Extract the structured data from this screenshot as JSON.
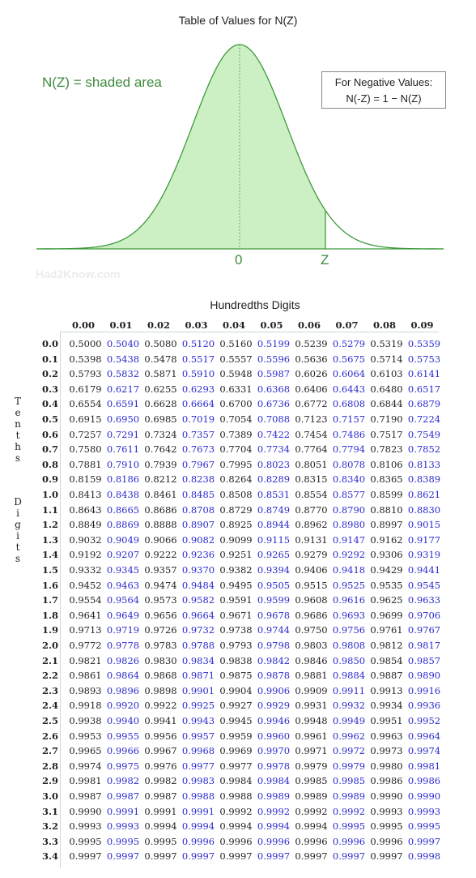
{
  "title": "Table of Values for N(Z)",
  "curve_label": "N(Z) = shaded area",
  "negative_box": {
    "line1": "For Negative Values:",
    "line2": "N(-Z) = 1 − N(Z)"
  },
  "axis_labels": {
    "zero": "0",
    "z": "Z"
  },
  "watermark": "Had2Know.com",
  "column_axis_label": "Hundredths Digits",
  "row_axis_label": {
    "word1": "Tenths",
    "word2": "Digits"
  },
  "colors": {
    "fill": "#ccf0c4",
    "stroke": "#3f9a3f",
    "odd_col": "#2b2bd0",
    "even_col": "#222222"
  },
  "columns": [
    "0.00",
    "0.01",
    "0.02",
    "0.03",
    "0.04",
    "0.05",
    "0.06",
    "0.07",
    "0.08",
    "0.09"
  ],
  "rows": [
    {
      "z": "0.0",
      "v": [
        "0.5000",
        "0.5040",
        "0.5080",
        "0.5120",
        "0.5160",
        "0.5199",
        "0.5239",
        "0.5279",
        "0.5319",
        "0.5359"
      ]
    },
    {
      "z": "0.1",
      "v": [
        "0.5398",
        "0.5438",
        "0.5478",
        "0.5517",
        "0.5557",
        "0.5596",
        "0.5636",
        "0.5675",
        "0.5714",
        "0.5753"
      ]
    },
    {
      "z": "0.2",
      "v": [
        "0.5793",
        "0.5832",
        "0.5871",
        "0.5910",
        "0.5948",
        "0.5987",
        "0.6026",
        "0.6064",
        "0.6103",
        "0.6141"
      ]
    },
    {
      "z": "0.3",
      "v": [
        "0.6179",
        "0.6217",
        "0.6255",
        "0.6293",
        "0.6331",
        "0.6368",
        "0.6406",
        "0.6443",
        "0.6480",
        "0.6517"
      ]
    },
    {
      "z": "0.4",
      "v": [
        "0.6554",
        "0.6591",
        "0.6628",
        "0.6664",
        "0.6700",
        "0.6736",
        "0.6772",
        "0.6808",
        "0.6844",
        "0.6879"
      ]
    },
    {
      "z": "0.5",
      "v": [
        "0.6915",
        "0.6950",
        "0.6985",
        "0.7019",
        "0.7054",
        "0.7088",
        "0.7123",
        "0.7157",
        "0.7190",
        "0.7224"
      ]
    },
    {
      "z": "0.6",
      "v": [
        "0.7257",
        "0.7291",
        "0.7324",
        "0.7357",
        "0.7389",
        "0.7422",
        "0.7454",
        "0.7486",
        "0.7517",
        "0.7549"
      ]
    },
    {
      "z": "0.7",
      "v": [
        "0.7580",
        "0.7611",
        "0.7642",
        "0.7673",
        "0.7704",
        "0.7734",
        "0.7764",
        "0.7794",
        "0.7823",
        "0.7852"
      ]
    },
    {
      "z": "0.8",
      "v": [
        "0.7881",
        "0.7910",
        "0.7939",
        "0.7967",
        "0.7995",
        "0.8023",
        "0.8051",
        "0.8078",
        "0.8106",
        "0.8133"
      ]
    },
    {
      "z": "0.9",
      "v": [
        "0.8159",
        "0.8186",
        "0.8212",
        "0.8238",
        "0.8264",
        "0.8289",
        "0.8315",
        "0.8340",
        "0.8365",
        "0.8389"
      ]
    },
    {
      "z": "1.0",
      "v": [
        "0.8413",
        "0.8438",
        "0.8461",
        "0.8485",
        "0.8508",
        "0.8531",
        "0.8554",
        "0.8577",
        "0.8599",
        "0.8621"
      ]
    },
    {
      "z": "1.1",
      "v": [
        "0.8643",
        "0.8665",
        "0.8686",
        "0.8708",
        "0.8729",
        "0.8749",
        "0.8770",
        "0.8790",
        "0.8810",
        "0.8830"
      ]
    },
    {
      "z": "1.2",
      "v": [
        "0.8849",
        "0.8869",
        "0.8888",
        "0.8907",
        "0.8925",
        "0.8944",
        "0.8962",
        "0.8980",
        "0.8997",
        "0.9015"
      ]
    },
    {
      "z": "1.3",
      "v": [
        "0.9032",
        "0.9049",
        "0.9066",
        "0.9082",
        "0.9099",
        "0.9115",
        "0.9131",
        "0.9147",
        "0.9162",
        "0.9177"
      ]
    },
    {
      "z": "1.4",
      "v": [
        "0.9192",
        "0.9207",
        "0.9222",
        "0.9236",
        "0.9251",
        "0.9265",
        "0.9279",
        "0.9292",
        "0.9306",
        "0.9319"
      ]
    },
    {
      "z": "1.5",
      "v": [
        "0.9332",
        "0.9345",
        "0.9357",
        "0.9370",
        "0.9382",
        "0.9394",
        "0.9406",
        "0.9418",
        "0.9429",
        "0.9441"
      ]
    },
    {
      "z": "1.6",
      "v": [
        "0.9452",
        "0.9463",
        "0.9474",
        "0.9484",
        "0.9495",
        "0.9505",
        "0.9515",
        "0.9525",
        "0.9535",
        "0.9545"
      ]
    },
    {
      "z": "1.7",
      "v": [
        "0.9554",
        "0.9564",
        "0.9573",
        "0.9582",
        "0.9591",
        "0.9599",
        "0.9608",
        "0.9616",
        "0.9625",
        "0.9633"
      ]
    },
    {
      "z": "1.8",
      "v": [
        "0.9641",
        "0.9649",
        "0.9656",
        "0.9664",
        "0.9671",
        "0.9678",
        "0.9686",
        "0.9693",
        "0.9699",
        "0.9706"
      ]
    },
    {
      "z": "1.9",
      "v": [
        "0.9713",
        "0.9719",
        "0.9726",
        "0.9732",
        "0.9738",
        "0.9744",
        "0.9750",
        "0.9756",
        "0.9761",
        "0.9767"
      ]
    },
    {
      "z": "2.0",
      "v": [
        "0.9772",
        "0.9778",
        "0.9783",
        "0.9788",
        "0.9793",
        "0.9798",
        "0.9803",
        "0.9808",
        "0.9812",
        "0.9817"
      ]
    },
    {
      "z": "2.1",
      "v": [
        "0.9821",
        "0.9826",
        "0.9830",
        "0.9834",
        "0.9838",
        "0.9842",
        "0.9846",
        "0.9850",
        "0.9854",
        "0.9857"
      ]
    },
    {
      "z": "2.2",
      "v": [
        "0.9861",
        "0.9864",
        "0.9868",
        "0.9871",
        "0.9875",
        "0.9878",
        "0.9881",
        "0.9884",
        "0.9887",
        "0.9890"
      ]
    },
    {
      "z": "2.3",
      "v": [
        "0.9893",
        "0.9896",
        "0.9898",
        "0.9901",
        "0.9904",
        "0.9906",
        "0.9909",
        "0.9911",
        "0.9913",
        "0.9916"
      ]
    },
    {
      "z": "2.4",
      "v": [
        "0.9918",
        "0.9920",
        "0.9922",
        "0.9925",
        "0.9927",
        "0.9929",
        "0.9931",
        "0.9932",
        "0.9934",
        "0.9936"
      ]
    },
    {
      "z": "2.5",
      "v": [
        "0.9938",
        "0.9940",
        "0.9941",
        "0.9943",
        "0.9945",
        "0.9946",
        "0.9948",
        "0.9949",
        "0.9951",
        "0.9952"
      ]
    },
    {
      "z": "2.6",
      "v": [
        "0.9953",
        "0.9955",
        "0.9956",
        "0.9957",
        "0.9959",
        "0.9960",
        "0.9961",
        "0.9962",
        "0.9963",
        "0.9964"
      ]
    },
    {
      "z": "2.7",
      "v": [
        "0.9965",
        "0.9966",
        "0.9967",
        "0.9968",
        "0.9969",
        "0.9970",
        "0.9971",
        "0.9972",
        "0.9973",
        "0.9974"
      ]
    },
    {
      "z": "2.8",
      "v": [
        "0.9974",
        "0.9975",
        "0.9976",
        "0.9977",
        "0.9977",
        "0.9978",
        "0.9979",
        "0.9979",
        "0.9980",
        "0.9981"
      ]
    },
    {
      "z": "2.9",
      "v": [
        "0.9981",
        "0.9982",
        "0.9982",
        "0.9983",
        "0.9984",
        "0.9984",
        "0.9985",
        "0.9985",
        "0.9986",
        "0.9986"
      ]
    },
    {
      "z": "3.0",
      "v": [
        "0.9987",
        "0.9987",
        "0.9987",
        "0.9988",
        "0.9988",
        "0.9989",
        "0.9989",
        "0.9989",
        "0.9990",
        "0.9990"
      ]
    },
    {
      "z": "3.1",
      "v": [
        "0.9990",
        "0.9991",
        "0.9991",
        "0.9991",
        "0.9992",
        "0.9992",
        "0.9992",
        "0.9992",
        "0.9993",
        "0.9993"
      ]
    },
    {
      "z": "3.2",
      "v": [
        "0.9993",
        "0.9993",
        "0.9994",
        "0.9994",
        "0.9994",
        "0.9994",
        "0.9994",
        "0.9995",
        "0.9995",
        "0.9995"
      ]
    },
    {
      "z": "3.3",
      "v": [
        "0.9995",
        "0.9995",
        "0.9995",
        "0.9996",
        "0.9996",
        "0.9996",
        "0.9996",
        "0.9996",
        "0.9996",
        "0.9997"
      ]
    },
    {
      "z": "3.4",
      "v": [
        "0.9997",
        "0.9997",
        "0.9997",
        "0.9997",
        "0.9997",
        "0.9997",
        "0.9997",
        "0.9997",
        "0.9997",
        "0.9998"
      ]
    }
  ]
}
